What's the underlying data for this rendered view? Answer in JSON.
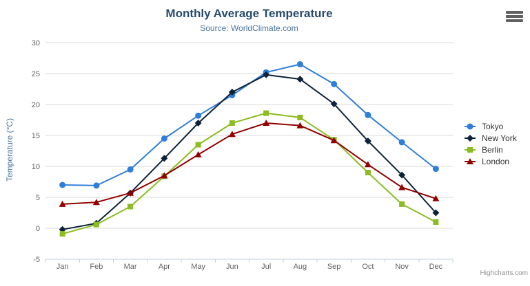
{
  "chart_data": {
    "type": "line",
    "title": "Monthly Average Temperature",
    "subtitle": "Source: WorldClimate.com",
    "xlabel": "",
    "ylabel": "Temperature (°C)",
    "ylim": [
      -5,
      30
    ],
    "y_ticks": [
      -5,
      0,
      5,
      10,
      15,
      20,
      25,
      30
    ],
    "grid": "horizontal-only",
    "legend_position": "right",
    "categories": [
      "Jan",
      "Feb",
      "Mar",
      "Apr",
      "May",
      "Jun",
      "Jul",
      "Aug",
      "Sep",
      "Oct",
      "Nov",
      "Dec"
    ],
    "series": [
      {
        "name": "Tokyo",
        "color": "#2f7ed8",
        "marker": "circle",
        "values": [
          7.0,
          6.9,
          9.5,
          14.5,
          18.2,
          21.5,
          25.2,
          26.5,
          23.3,
          18.3,
          13.9,
          9.6
        ]
      },
      {
        "name": "New York",
        "color": "#0d233a",
        "marker": "diamond",
        "values": [
          -0.2,
          0.8,
          5.7,
          11.3,
          17.0,
          22.0,
          24.8,
          24.1,
          20.1,
          14.1,
          8.6,
          2.5
        ]
      },
      {
        "name": "Berlin",
        "color": "#8bbc21",
        "marker": "square",
        "values": [
          -0.9,
          0.6,
          3.5,
          8.4,
          13.5,
          17.0,
          18.6,
          17.9,
          14.3,
          9.0,
          3.9,
          1.0
        ]
      },
      {
        "name": "London",
        "color": "#910000",
        "marker": "triangle",
        "values": [
          3.9,
          4.2,
          5.7,
          8.5,
          11.9,
          15.2,
          17.0,
          16.6,
          14.2,
          10.3,
          6.6,
          4.8
        ]
      }
    ],
    "colors": {
      "grid_line": "#D8D8D8",
      "axis_line": "#C0D0E0",
      "axis_label": "#606060",
      "title": "#274b6d",
      "subtitle": "#4d759e"
    }
  },
  "export_menu": {
    "icon": "hamburger-icon"
  },
  "credits": {
    "label": "Highcharts.com"
  }
}
